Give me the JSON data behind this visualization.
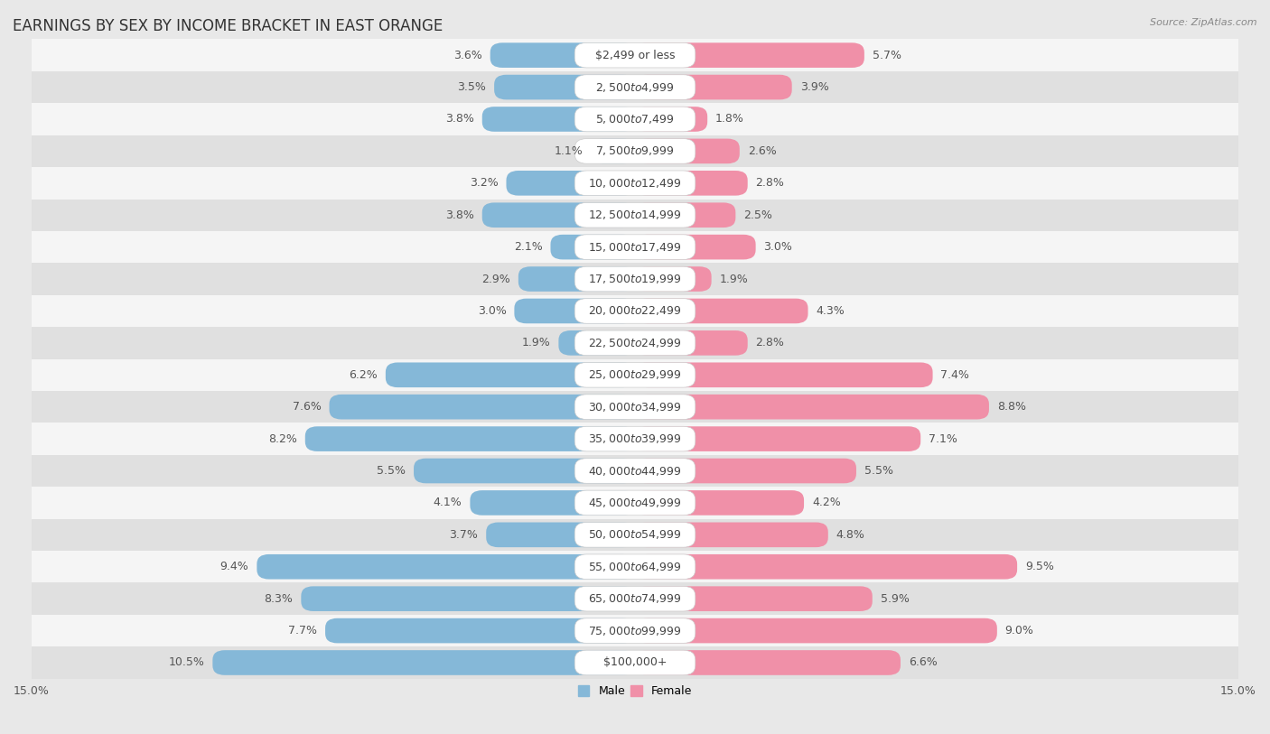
{
  "title": "EARNINGS BY SEX BY INCOME BRACKET IN EAST ORANGE",
  "source": "Source: ZipAtlas.com",
  "categories": [
    "$2,499 or less",
    "$2,500 to $4,999",
    "$5,000 to $7,499",
    "$7,500 to $9,999",
    "$10,000 to $12,499",
    "$12,500 to $14,999",
    "$15,000 to $17,499",
    "$17,500 to $19,999",
    "$20,000 to $22,499",
    "$22,500 to $24,999",
    "$25,000 to $29,999",
    "$30,000 to $34,999",
    "$35,000 to $39,999",
    "$40,000 to $44,999",
    "$45,000 to $49,999",
    "$50,000 to $54,999",
    "$55,000 to $64,999",
    "$65,000 to $74,999",
    "$75,000 to $99,999",
    "$100,000+"
  ],
  "male": [
    3.6,
    3.5,
    3.8,
    1.1,
    3.2,
    3.8,
    2.1,
    2.9,
    3.0,
    1.9,
    6.2,
    7.6,
    8.2,
    5.5,
    4.1,
    3.7,
    9.4,
    8.3,
    7.7,
    10.5
  ],
  "female": [
    5.7,
    3.9,
    1.8,
    2.6,
    2.8,
    2.5,
    3.0,
    1.9,
    4.3,
    2.8,
    7.4,
    8.8,
    7.1,
    5.5,
    4.2,
    4.8,
    9.5,
    5.9,
    9.0,
    6.6
  ],
  "male_color": "#85b8d8",
  "female_color": "#f090a8",
  "background_color": "#e8e8e8",
  "row_color_light": "#f5f5f5",
  "row_color_dark": "#e0e0e0",
  "xlim": 15.0,
  "title_fontsize": 12,
  "label_fontsize": 9,
  "tick_fontsize": 9,
  "category_fontsize": 9
}
